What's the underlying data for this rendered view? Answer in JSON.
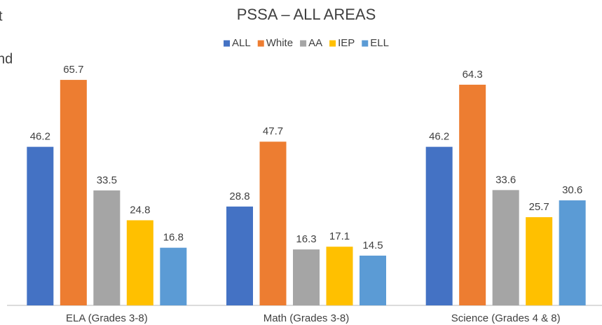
{
  "annotations": [
    "t",
    "nd"
  ],
  "chart_data": {
    "type": "bar",
    "title": "PSSA – ALL AREAS",
    "categories": [
      "ELA (Grades 3-8)",
      "Math (Grades 3-8)",
      "Science (Grades 4 & 8)"
    ],
    "series": [
      {
        "name": "ALL",
        "color": "#4472c4",
        "values": [
          46.2,
          28.8,
          46.2
        ]
      },
      {
        "name": "White",
        "color": "#ed7d31",
        "values": [
          65.7,
          47.7,
          64.3
        ]
      },
      {
        "name": "AA",
        "color": "#a5a5a5",
        "values": [
          33.5,
          16.3,
          33.6
        ]
      },
      {
        "name": "IEP",
        "color": "#ffc000",
        "values": [
          24.8,
          17.1,
          25.7
        ]
      },
      {
        "name": "ELL",
        "color": "#5b9bd5",
        "values": [
          16.8,
          14.5,
          30.6
        ]
      }
    ],
    "ylim": [
      0,
      70
    ],
    "legend": "top"
  }
}
